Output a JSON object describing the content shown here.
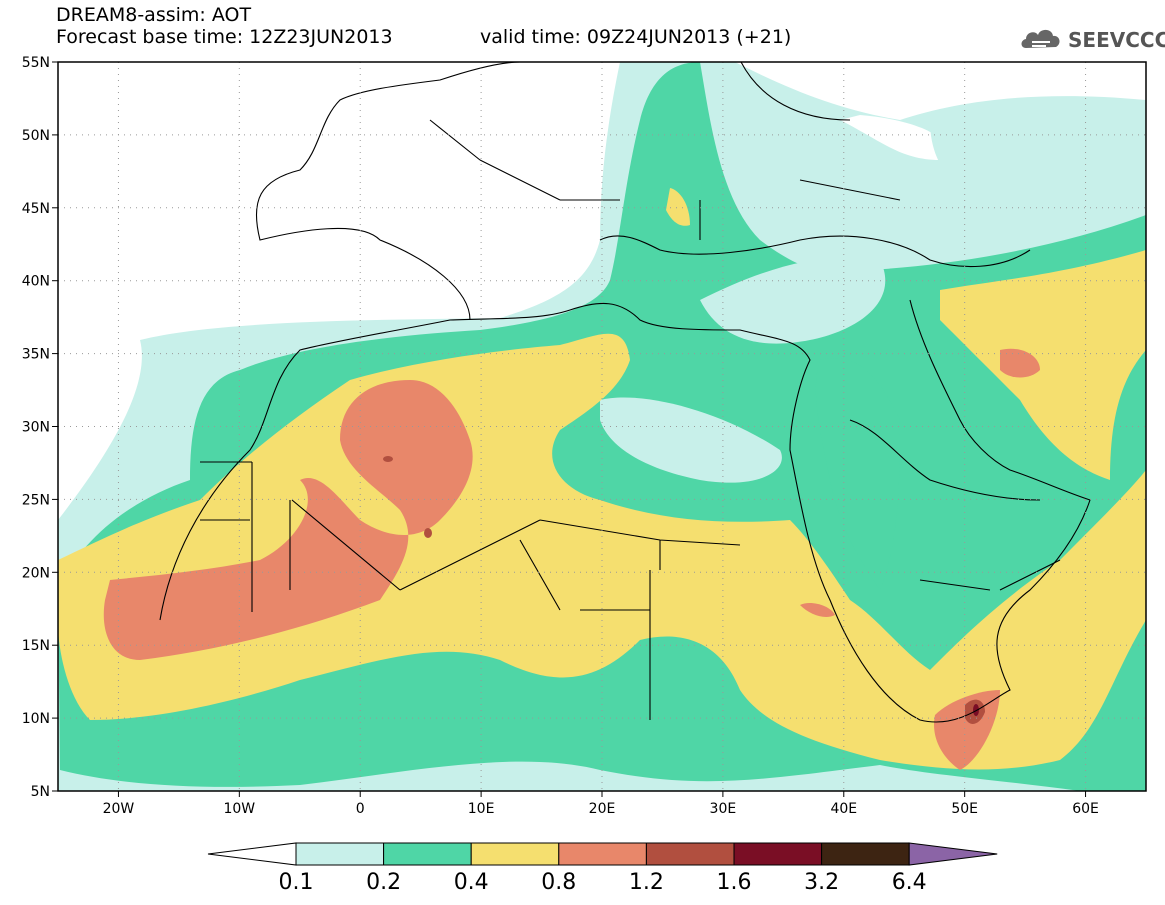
{
  "header": {
    "line1": "DREAM8-assim: AOT",
    "line2": "Forecast base time: 12Z23JUN2013",
    "valid": "valid time: 09Z24JUN2013 (+21)",
    "logo_text": "SEEVCCC",
    "logo_icon": "cloud-icon"
  },
  "map": {
    "lon_range": [
      -25,
      65
    ],
    "lat_range": [
      5,
      55
    ],
    "lat_ticks": [
      "55N",
      "50N",
      "45N",
      "40N",
      "35N",
      "30N",
      "25N",
      "20N",
      "15N",
      "10N",
      "5N"
    ],
    "lon_ticks": [
      "20W",
      "10W",
      "0",
      "10E",
      "20E",
      "30E",
      "40E",
      "50E",
      "60E"
    ]
  },
  "colorbar": {
    "colors": [
      "#ffffff",
      "#c8f0ea",
      "#4fd6a6",
      "#f5df6f",
      "#e8876a",
      "#b14f3f",
      "#7a0e25",
      "#3d2412",
      "#8b64a6"
    ],
    "labels": [
      "0.1",
      "0.2",
      "0.4",
      "0.8",
      "1.2",
      "1.6",
      "3.2",
      "6.4"
    ]
  }
}
